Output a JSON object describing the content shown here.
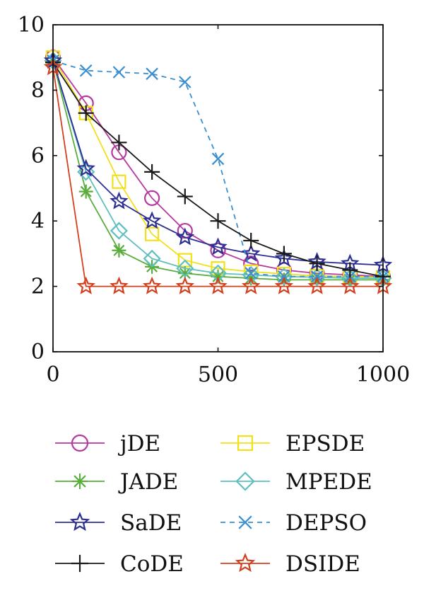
{
  "chart_data": {
    "type": "line",
    "title": "",
    "xlabel": "",
    "ylabel": "",
    "xlim": [
      0,
      1000
    ],
    "ylim": [
      0,
      10
    ],
    "x_ticks": [
      0,
      500,
      1000
    ],
    "y_ticks": [
      0,
      2,
      4,
      6,
      8,
      10
    ],
    "grid": false,
    "legend_position": "bottom",
    "x": [
      0,
      100,
      200,
      300,
      400,
      500,
      600,
      700,
      800,
      900,
      1000
    ],
    "series": [
      {
        "name": "jDE",
        "color": "#b5399e",
        "marker": "circle",
        "dash": "solid",
        "values": [
          9.0,
          7.6,
          6.1,
          4.7,
          3.7,
          3.1,
          2.7,
          2.5,
          2.4,
          2.35,
          2.3
        ]
      },
      {
        "name": "EPSDE",
        "color": "#f2e01a",
        "marker": "square",
        "dash": "solid",
        "values": [
          9.0,
          7.3,
          5.2,
          3.6,
          2.8,
          2.55,
          2.45,
          2.38,
          2.32,
          2.3,
          2.28
        ]
      },
      {
        "name": "JADE",
        "color": "#5aad3c",
        "marker": "asterisk",
        "dash": "solid",
        "values": [
          8.9,
          4.9,
          3.1,
          2.6,
          2.4,
          2.3,
          2.25,
          2.2,
          2.2,
          2.2,
          2.2
        ]
      },
      {
        "name": "MPEDE",
        "color": "#5fbfbf",
        "marker": "diamond",
        "dash": "solid",
        "values": [
          8.9,
          5.5,
          3.7,
          2.85,
          2.55,
          2.4,
          2.35,
          2.3,
          2.28,
          2.25,
          2.25
        ]
      },
      {
        "name": "SaDE",
        "color": "#2e2f94",
        "marker": "star",
        "dash": "solid",
        "values": [
          8.9,
          5.6,
          4.6,
          4.0,
          3.5,
          3.2,
          3.0,
          2.85,
          2.75,
          2.7,
          2.65
        ]
      },
      {
        "name": "DEPSO",
        "color": "#3a8fd0",
        "marker": "x",
        "dash": "dashed",
        "values": [
          8.9,
          8.6,
          8.55,
          8.5,
          8.25,
          5.9,
          2.4,
          2.3,
          2.3,
          2.3,
          2.3
        ]
      },
      {
        "name": "CoDE",
        "color": "#1a1a1a",
        "marker": "plus",
        "dash": "solid",
        "values": [
          8.85,
          7.3,
          6.4,
          5.5,
          4.75,
          4.0,
          3.4,
          3.0,
          2.7,
          2.5,
          2.3
        ]
      },
      {
        "name": "DSIDE",
        "color": "#d2401f",
        "marker": "star",
        "dash": "solid",
        "values": [
          8.7,
          2.0,
          2.0,
          2.0,
          2.0,
          2.0,
          2.0,
          2.0,
          2.0,
          2.0,
          2.0
        ]
      }
    ]
  }
}
